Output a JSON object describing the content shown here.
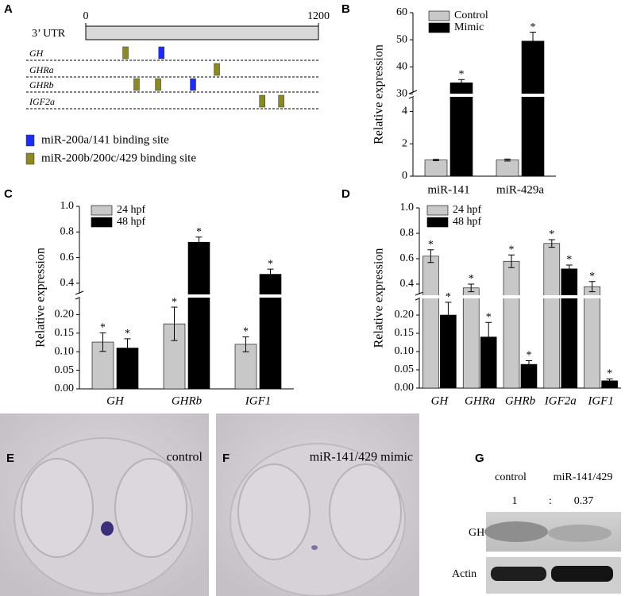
{
  "panel_a": {
    "letter": "A",
    "label": "3’ UTR",
    "xlim": [
      0,
      1200
    ],
    "xticks": [
      0,
      1200
    ],
    "legend": [
      {
        "label": "miR-200a/141 binding site",
        "color": "#1a2cff"
      },
      {
        "label": "miR-200b/200c/429 binding site",
        "color": "#8a8a1e"
      }
    ],
    "genes": [
      {
        "name": "GH",
        "sites": [
          [
            390
          ],
          [
            205
          ]
        ]
      },
      {
        "name": "GHRa",
        "sites": [
          [],
          [
            676
          ]
        ]
      },
      {
        "name": "GHRb",
        "sites": [
          [
            553
          ],
          [
            262,
            373
          ]
        ]
      },
      {
        "name": "IGF2a",
        "sites": [
          [],
          [
            910,
            1008
          ]
        ]
      }
    ]
  },
  "chart_data": [
    {
      "panel": "B",
      "type": "bar",
      "ylabel": "Relative expression",
      "categories": [
        "miR-141",
        "miR-429a"
      ],
      "italic_categories": false,
      "series": [
        {
          "name": "Control",
          "color": "#c8c8c8",
          "values": [
            1.0,
            1.0
          ],
          "errors": [
            0.04,
            0.06
          ],
          "significance": [
            null,
            null
          ]
        },
        {
          "name": "Mimic",
          "color": "#000000",
          "values": [
            34.1,
            49.5
          ],
          "errors": [
            1.2,
            3.3
          ],
          "significance": [
            "*",
            "*"
          ]
        }
      ],
      "ylim": [
        0,
        60
      ],
      "ybreak": [
        5,
        29.5
      ],
      "yticks": [
        0,
        2,
        4,
        30,
        40,
        50,
        60
      ],
      "legend": "upper left"
    },
    {
      "panel": "C",
      "type": "bar",
      "ylabel": "Relative expression",
      "categories": [
        "GH",
        "GHRb",
        "IGF1"
      ],
      "italic_categories": true,
      "series": [
        {
          "name": "24 hpf",
          "color": "#c8c8c8",
          "values": [
            0.126,
            0.175,
            0.12
          ],
          "errors": [
            0.025,
            0.045,
            0.02
          ],
          "significance": [
            "*",
            "*",
            "*"
          ]
        },
        {
          "name": "48 hpf",
          "color": "#000000",
          "values": [
            0.11,
            0.72,
            0.47
          ],
          "errors": [
            0.025,
            0.04,
            0.04
          ],
          "significance": [
            "*",
            "*",
            "*"
          ]
        }
      ],
      "ylim": [
        0,
        1
      ],
      "ybreak": [
        0.25,
        0.3
      ],
      "yticks": [
        {
          "value": 0,
          "label": "0.00"
        },
        0.05,
        {
          "value": 0.1,
          "label": "0.10"
        },
        0.15,
        {
          "value": 0.2,
          "label": "0.20"
        },
        0.4,
        0.6,
        0.8,
        {
          "value": 1,
          "label": "1.0"
        }
      ],
      "legend": "upper left"
    },
    {
      "panel": "D",
      "type": "bar",
      "ylabel": "Relative expression",
      "categories": [
        "GH",
        "GHRa",
        "GHRb",
        "IGF2a",
        "IGF1"
      ],
      "italic_categories": true,
      "series": [
        {
          "name": "24 hpf",
          "color": "#c8c8c8",
          "values": [
            0.62,
            0.37,
            0.58,
            0.72,
            0.38
          ],
          "errors": [
            0.05,
            0.03,
            0.05,
            0.03,
            0.04
          ],
          "significance": [
            "*",
            "*",
            "*",
            "*",
            "*"
          ]
        },
        {
          "name": "48 hpf",
          "color": "#000000",
          "values": [
            0.2,
            0.14,
            0.065,
            0.52,
            0.02
          ],
          "errors": [
            0.035,
            0.04,
            0.01,
            0.03,
            0.005
          ],
          "significance": [
            "*",
            "*",
            "*",
            "*",
            "*"
          ]
        }
      ],
      "ylim": [
        0,
        1
      ],
      "ybreak": [
        0.25,
        0.3
      ],
      "yticks": [
        {
          "value": 0,
          "label": "0.00"
        },
        0.05,
        {
          "value": 0.1,
          "label": "0.10"
        },
        0.15,
        {
          "value": 0.2,
          "label": "0.20"
        },
        0.4,
        0.6,
        0.8,
        {
          "value": 1,
          "label": "1.0"
        }
      ],
      "legend": "upper left"
    }
  ],
  "panel_e": {
    "letter": "E",
    "label": "control"
  },
  "panel_f": {
    "letter": "F",
    "label": "miR-141/429 mimic"
  },
  "panel_g": {
    "letter": "G",
    "columns": [
      "control",
      "miR-141/429"
    ],
    "ratios": [
      1,
      0.37
    ],
    "separator": ":",
    "rows": [
      "GH",
      "Actin"
    ]
  }
}
